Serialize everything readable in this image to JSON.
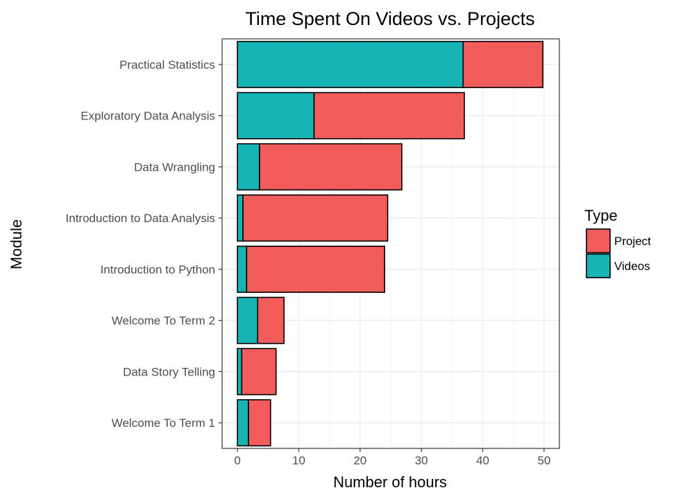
{
  "chart_data": {
    "type": "bar",
    "orientation": "horizontal",
    "stacked": true,
    "title": "Time Spent On Videos vs. Projects",
    "xlabel": "Number of hours",
    "ylabel": "Module",
    "xlim": [
      -2.5,
      52.5
    ],
    "xticks": [
      0,
      10,
      20,
      30,
      40,
      50
    ],
    "grid": true,
    "legend": {
      "title": "Type",
      "position": "right",
      "entries": [
        {
          "name": "Project",
          "color": "#F25C5A"
        },
        {
          "name": "Videos",
          "color": "#18B3B5"
        }
      ]
    },
    "categories": [
      "Practical Statistics",
      "Exploratory Data Analysis",
      "Data Wrangling",
      "Introduction to Data Analysis",
      "Introduction to Python",
      "Welcome To Term 2",
      "Data Story Telling",
      "Welcome To Term 1"
    ],
    "series": [
      {
        "name": "Videos",
        "color": "#18B3B5",
        "values": [
          36.8,
          12.5,
          3.6,
          0.9,
          1.5,
          3.3,
          0.7,
          1.8
        ]
      },
      {
        "name": "Project",
        "color": "#F25C5A",
        "values": [
          13.0,
          24.5,
          23.2,
          23.6,
          22.5,
          4.3,
          5.6,
          3.6
        ]
      }
    ]
  }
}
